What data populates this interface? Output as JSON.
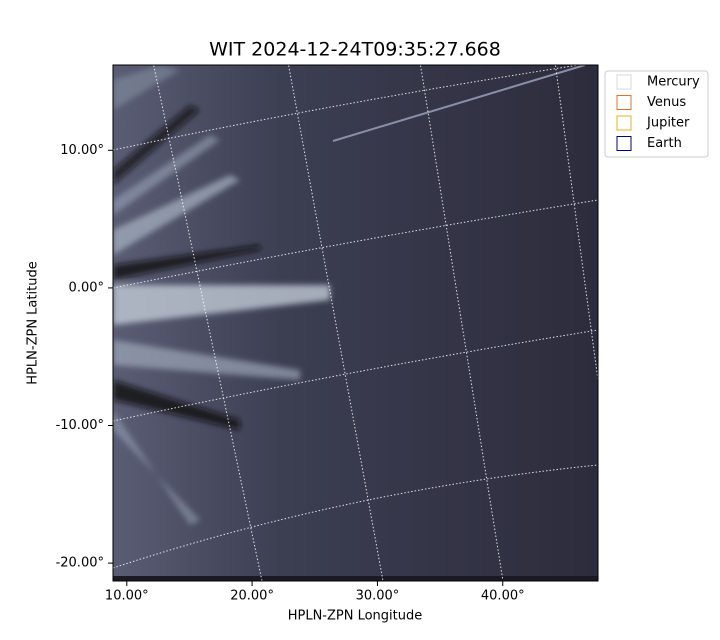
{
  "chart_data": {
    "type": "image",
    "title": "WIT 2024-12-24T09:35:27.668",
    "xlabel": "HPLN-ZPN Longitude",
    "ylabel": "HPLN-ZPN Latitude",
    "xlim": [
      8.9,
      47.6
    ],
    "ylim": [
      -21.3,
      16.2
    ],
    "xticks": [
      {
        "value": 10,
        "label": "10.00°"
      },
      {
        "value": 20,
        "label": "20.00°"
      },
      {
        "value": 30,
        "label": "30.00°"
      },
      {
        "value": 40,
        "label": "40.00°"
      }
    ],
    "yticks": [
      {
        "value": 10,
        "label": "10.00°"
      },
      {
        "value": 0,
        "label": "0.00°"
      },
      {
        "value": -10,
        "label": "-10.00°"
      },
      {
        "value": -20,
        "label": "-20.00°"
      }
    ],
    "grid": true,
    "legend": [
      {
        "name": "Mercury",
        "color": "#d9d9d9"
      },
      {
        "name": "Venus",
        "color": "#e0702a"
      },
      {
        "name": "Jupiter",
        "color": "#e8b020"
      },
      {
        "name": "Earth",
        "color": "#000080"
      }
    ]
  }
}
